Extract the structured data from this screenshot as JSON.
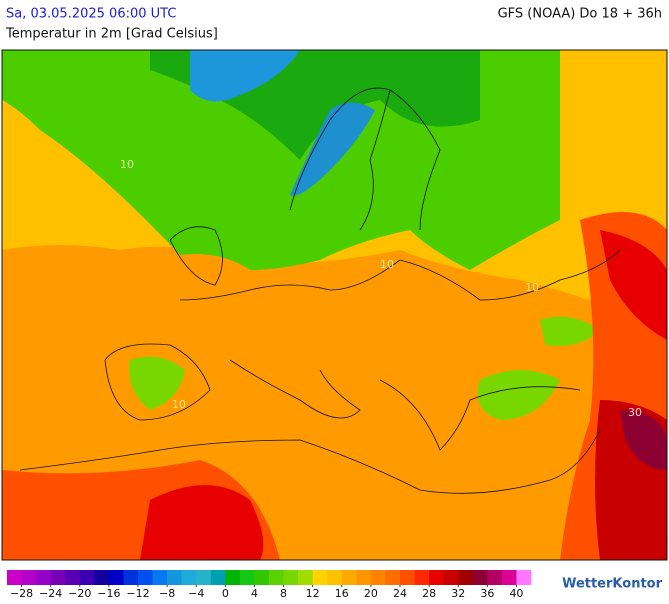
{
  "header": {
    "datetime": "Sa, 03.05.2025 06:00 UTC",
    "model": "GFS (NOAA) Do 18 + 36h",
    "subtitle": "Temperatur in 2m [Grad Celsius]"
  },
  "map_labels": [
    "10",
    "10",
    "10",
    "10",
    "30"
  ],
  "colorbar": {
    "lim": [
      -30,
      42
    ],
    "colors": [
      "#c800c8",
      "#b400c8",
      "#9600c8",
      "#7800b4",
      "#5a00b4",
      "#3c00b4",
      "#1400a0",
      "#0000c8",
      "#0032dc",
      "#0050f0",
      "#0a78f0",
      "#1496dc",
      "#1eaadc",
      "#28b4c8",
      "#00a0b4",
      "#00b400",
      "#14c814",
      "#32c800",
      "#5ad200",
      "#78d700",
      "#a0dc00",
      "#ffd200",
      "#ffc000",
      "#ffaa00",
      "#ff9600",
      "#ff8200",
      "#ff6e00",
      "#ff5000",
      "#ff2800",
      "#e60000",
      "#c80000",
      "#a00000",
      "#8c0032",
      "#b40064",
      "#dc0096",
      "#ff78ff"
    ],
    "ticks": [
      {
        "value": -28,
        "label": "−28"
      },
      {
        "value": -24,
        "label": "−24"
      },
      {
        "value": -20,
        "label": "−20"
      },
      {
        "value": -16,
        "label": "−16"
      },
      {
        "value": -12,
        "label": "−12"
      },
      {
        "value": -8,
        "label": "−8"
      },
      {
        "value": -4,
        "label": "−4"
      },
      0,
      4,
      8,
      12,
      16,
      20,
      24,
      28,
      32,
      36,
      40
    ]
  },
  "brand": "WetterKontor"
}
